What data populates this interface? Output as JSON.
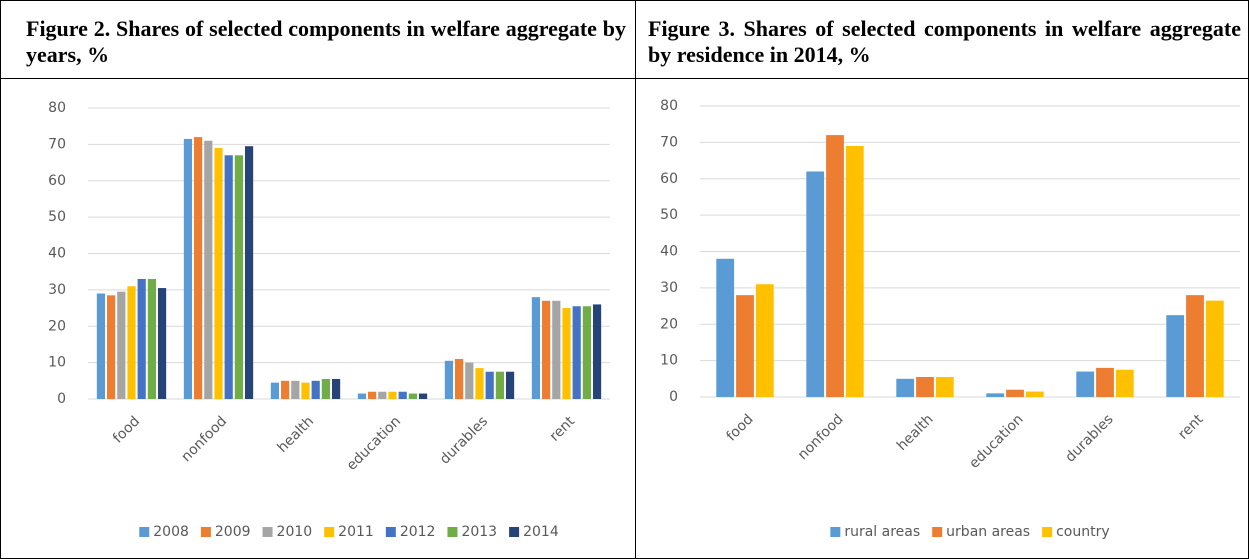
{
  "chart_data": [
    {
      "type": "bar",
      "title": "Figure 2. Shares of selected components in welfare aggregate by years, %",
      "categories": [
        "food",
        "nonfood",
        "health",
        "education",
        "durables",
        "rent"
      ],
      "series": [
        {
          "name": "2008",
          "color": "#5b9bd5",
          "values": [
            29,
            71.5,
            4.5,
            1.5,
            10.5,
            28
          ]
        },
        {
          "name": "2009",
          "color": "#ed7d31",
          "values": [
            28.5,
            72,
            5,
            2,
            11,
            27
          ]
        },
        {
          "name": "2010",
          "color": "#a5a5a5",
          "values": [
            29.5,
            71,
            5,
            2,
            10,
            27
          ]
        },
        {
          "name": "2011",
          "color": "#ffc000",
          "values": [
            31,
            69,
            4.5,
            2,
            8.5,
            25
          ]
        },
        {
          "name": "2012",
          "color": "#4472c4",
          "values": [
            33,
            67,
            5,
            2,
            7.5,
            25.5
          ]
        },
        {
          "name": "2013",
          "color": "#70ad47",
          "values": [
            33,
            67,
            5.5,
            1.5,
            7.5,
            25.5
          ]
        },
        {
          "name": "2014",
          "color": "#264478",
          "values": [
            30.5,
            69.5,
            5.5,
            1.5,
            7.5,
            26
          ]
        }
      ],
      "ylim": [
        0,
        80
      ],
      "yticks": [
        0,
        10,
        20,
        30,
        40,
        50,
        60,
        70,
        80
      ],
      "grid": true,
      "legend": "bottom"
    },
    {
      "type": "bar",
      "title": "Figure 3. Shares of selected components in welfare aggregate by residence in 2014, %",
      "categories": [
        "food",
        "nonfood",
        "health",
        "education",
        "durables",
        "rent"
      ],
      "series": [
        {
          "name": "rural areas",
          "color": "#5b9bd5",
          "values": [
            38,
            62,
            5,
            1,
            7,
            22.5
          ]
        },
        {
          "name": "urban areas",
          "color": "#ed7d31",
          "values": [
            28,
            72,
            5.5,
            2,
            8,
            28
          ]
        },
        {
          "name": "country",
          "color": "#ffc000",
          "values": [
            31,
            69,
            5.5,
            1.5,
            7.5,
            26.5
          ]
        }
      ],
      "ylim": [
        0,
        80
      ],
      "yticks": [
        0,
        10,
        20,
        30,
        40,
        50,
        60,
        70,
        80
      ],
      "grid": true,
      "legend": "bottom"
    }
  ]
}
